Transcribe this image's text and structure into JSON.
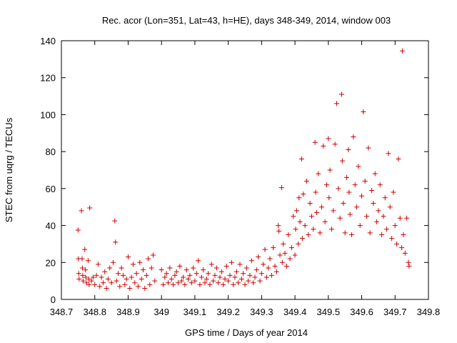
{
  "chart_data": {
    "type": "scatter",
    "title": "Rec. acor (Lon=351, Lat=43, h=HE), days 348-349, 2014, window 003",
    "xlabel": "GPS time / Days of year 2014",
    "ylabel": "STEC from uqrg / TECUs",
    "xlim": [
      348.7,
      349.8
    ],
    "ylim": [
      0,
      140
    ],
    "xticks": [
      348.7,
      348.8,
      348.9,
      349,
      349.1,
      349.2,
      349.3,
      349.4,
      349.5,
      349.6,
      349.7,
      349.8
    ],
    "xtick_labels": [
      "348.7",
      "348.8",
      "348.9",
      "349",
      "349.1",
      "349.2",
      "349.3",
      "349.4",
      "349.5",
      "349.6",
      "349.7",
      "349.8"
    ],
    "yticks": [
      0,
      20,
      40,
      60,
      80,
      100,
      120,
      140
    ],
    "ytick_labels": [
      "0",
      "20",
      "40",
      "60",
      "80",
      "100",
      "120",
      "140"
    ],
    "grid": false,
    "legend": "none",
    "marker": "+",
    "color": "#cc0000",
    "series": [
      {
        "points": [
          [
            348.75,
            37.5
          ],
          [
            348.751,
            22
          ],
          [
            348.752,
            14
          ],
          [
            348.753,
            11
          ],
          [
            348.76,
            48
          ],
          [
            348.762,
            22
          ],
          [
            348.763,
            17
          ],
          [
            348.764,
            13
          ],
          [
            348.765,
            10
          ],
          [
            348.77,
            27
          ],
          [
            348.772,
            16
          ],
          [
            348.773,
            12
          ],
          [
            348.775,
            9
          ],
          [
            348.78,
            21
          ],
          [
            348.782,
            11
          ],
          [
            348.783,
            8
          ],
          [
            348.785,
            49.5
          ],
          [
            348.79,
            10
          ],
          [
            348.795,
            12
          ],
          [
            348.8,
            8
          ],
          [
            348.805,
            13
          ],
          [
            348.81,
            19
          ],
          [
            348.815,
            7
          ],
          [
            348.82,
            12
          ],
          [
            348.825,
            9
          ],
          [
            348.83,
            15
          ],
          [
            348.835,
            6
          ],
          [
            348.84,
            11
          ],
          [
            348.845,
            17
          ],
          [
            348.85,
            9
          ],
          [
            348.855,
            20
          ],
          [
            348.86,
            42.5
          ],
          [
            348.862,
            31
          ],
          [
            348.865,
            10
          ],
          [
            348.87,
            14
          ],
          [
            348.875,
            7
          ],
          [
            348.88,
            17
          ],
          [
            348.885,
            13
          ],
          [
            348.89,
            8
          ],
          [
            348.895,
            11
          ],
          [
            348.9,
            23
          ],
          [
            348.905,
            6
          ],
          [
            348.91,
            12
          ],
          [
            348.915,
            19
          ],
          [
            348.92,
            9
          ],
          [
            348.925,
            14
          ],
          [
            348.93,
            7
          ],
          [
            348.935,
            20
          ],
          [
            348.94,
            11
          ],
          [
            348.945,
            16
          ],
          [
            348.95,
            6
          ],
          [
            348.955,
            13
          ],
          [
            348.96,
            22
          ],
          [
            348.965,
            8
          ],
          [
            348.97,
            17
          ],
          [
            348.975,
            24
          ],
          [
            348.98,
            10
          ],
          [
            349.0,
            16
          ],
          [
            349.005,
            8
          ],
          [
            349.01,
            12
          ],
          [
            349.015,
            14
          ],
          [
            349.02,
            9
          ],
          [
            349.025,
            17
          ],
          [
            349.03,
            11
          ],
          [
            349.035,
            8
          ],
          [
            349.04,
            13
          ],
          [
            349.045,
            15
          ],
          [
            349.05,
            9
          ],
          [
            349.055,
            18
          ],
          [
            349.06,
            10
          ],
          [
            349.065,
            12
          ],
          [
            349.07,
            8
          ],
          [
            349.075,
            16
          ],
          [
            349.08,
            11
          ],
          [
            349.085,
            13
          ],
          [
            349.09,
            9
          ],
          [
            349.095,
            17
          ],
          [
            349.1,
            10
          ],
          [
            349.105,
            14
          ],
          [
            349.11,
            21
          ],
          [
            349.115,
            8
          ],
          [
            349.12,
            12
          ],
          [
            349.125,
            16
          ],
          [
            349.13,
            9
          ],
          [
            349.135,
            11
          ],
          [
            349.14,
            14
          ],
          [
            349.145,
            8
          ],
          [
            349.15,
            19
          ],
          [
            349.155,
            10
          ],
          [
            349.16,
            13
          ],
          [
            349.165,
            17
          ],
          [
            349.17,
            9
          ],
          [
            349.175,
            12
          ],
          [
            349.18,
            15
          ],
          [
            349.185,
            8
          ],
          [
            349.19,
            11
          ],
          [
            349.195,
            18
          ],
          [
            349.2,
            10
          ],
          [
            349.205,
            13
          ],
          [
            349.21,
            20
          ],
          [
            349.215,
            8
          ],
          [
            349.22,
            12
          ],
          [
            349.225,
            15
          ],
          [
            349.23,
            9
          ],
          [
            349.235,
            19
          ],
          [
            349.24,
            11
          ],
          [
            349.245,
            14
          ],
          [
            349.25,
            8
          ],
          [
            349.255,
            17
          ],
          [
            349.26,
            10
          ],
          [
            349.265,
            13
          ],
          [
            349.27,
            21
          ],
          [
            349.275,
            9
          ],
          [
            349.28,
            12
          ],
          [
            349.285,
            16
          ],
          [
            349.29,
            23
          ],
          [
            349.295,
            10
          ],
          [
            349.3,
            14
          ],
          [
            349.305,
            19
          ],
          [
            349.31,
            27
          ],
          [
            349.315,
            12
          ],
          [
            349.32,
            17
          ],
          [
            349.325,
            22
          ],
          [
            349.33,
            13
          ],
          [
            349.335,
            28
          ],
          [
            349.34,
            18
          ],
          [
            349.345,
            15
          ],
          [
            349.35,
            40
          ],
          [
            349.352,
            37
          ],
          [
            349.355,
            24
          ],
          [
            349.36,
            60.5
          ],
          [
            349.362,
            20
          ],
          [
            349.365,
            30
          ],
          [
            349.37,
            25
          ],
          [
            349.375,
            18
          ],
          [
            349.38,
            35
          ],
          [
            349.385,
            22
          ],
          [
            349.39,
            28
          ],
          [
            349.395,
            45
          ],
          [
            349.4,
            24
          ],
          [
            349.402,
            38
          ],
          [
            349.405,
            48
          ],
          [
            349.41,
            30
          ],
          [
            349.412,
            55
          ],
          [
            349.415,
            42
          ],
          [
            349.42,
            76
          ],
          [
            349.422,
            33
          ],
          [
            349.425,
            57
          ],
          [
            349.43,
            40
          ],
          [
            349.435,
            64
          ],
          [
            349.44,
            35
          ],
          [
            349.445,
            52
          ],
          [
            349.45,
            45
          ],
          [
            349.455,
            38
          ],
          [
            349.46,
            85
          ],
          [
            349.462,
            58
          ],
          [
            349.465,
            47
          ],
          [
            349.47,
            68
          ],
          [
            349.475,
            36
          ],
          [
            349.48,
            50
          ],
          [
            349.485,
            83
          ],
          [
            349.49,
            42
          ],
          [
            349.495,
            62
          ],
          [
            349.5,
            87
          ],
          [
            349.502,
            55
          ],
          [
            349.505,
            70
          ],
          [
            349.51,
            38
          ],
          [
            349.515,
            48
          ],
          [
            349.52,
            84
          ],
          [
            349.525,
            106
          ],
          [
            349.53,
            60
          ],
          [
            349.535,
            44
          ],
          [
            349.54,
            111
          ],
          [
            349.542,
            75
          ],
          [
            349.545,
            52
          ],
          [
            349.55,
            36
          ],
          [
            349.555,
            66
          ],
          [
            349.56,
            81
          ],
          [
            349.562,
            58
          ],
          [
            349.565,
            46
          ],
          [
            349.57,
            35
          ],
          [
            349.575,
            88
          ],
          [
            349.58,
            62
          ],
          [
            349.585,
            50
          ],
          [
            349.59,
            72
          ],
          [
            349.595,
            40
          ],
          [
            349.6,
            56
          ],
          [
            349.605,
            101.5
          ],
          [
            349.61,
            64
          ],
          [
            349.615,
            45
          ],
          [
            349.62,
            82
          ],
          [
            349.625,
            36
          ],
          [
            349.63,
            59
          ],
          [
            349.635,
            52
          ],
          [
            349.64,
            68
          ],
          [
            349.645,
            42
          ],
          [
            349.65,
            48
          ],
          [
            349.655,
            62
          ],
          [
            349.66,
            35
          ],
          [
            349.665,
            45
          ],
          [
            349.67,
            55
          ],
          [
            349.675,
            38
          ],
          [
            349.68,
            79
          ],
          [
            349.685,
            50
          ],
          [
            349.69,
            33
          ],
          [
            349.695,
            58
          ],
          [
            349.7,
            40
          ],
          [
            349.705,
            30
          ],
          [
            349.71,
            76
          ],
          [
            349.715,
            44
          ],
          [
            349.72,
            28
          ],
          [
            349.722,
            134.5
          ],
          [
            349.725,
            35
          ],
          [
            349.73,
            25
          ],
          [
            349.735,
            44
          ],
          [
            349.74,
            20
          ],
          [
            349.742,
            18
          ]
        ]
      }
    ]
  }
}
